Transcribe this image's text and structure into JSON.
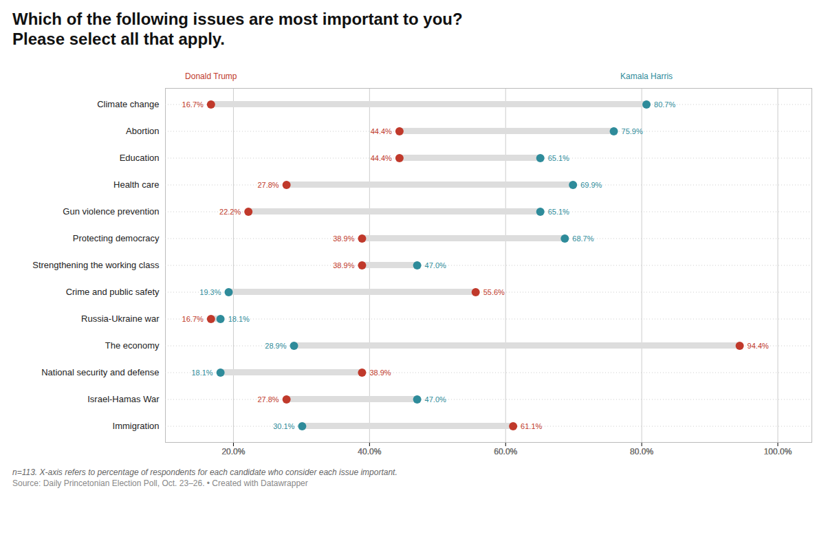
{
  "chart_data": {
    "type": "dumbbell",
    "title": "Which of the following issues are most important to you?",
    "subtitle": "Please select all that apply.",
    "footnotes": [
      "n=113. X-axis refers to percentage of respondents for each candidate who consider each issue important.",
      "Source: Daily Princetonian Election Poll, Oct. 23–26. • Created with Datawrapper"
    ],
    "orientation": "horizontal",
    "categories": [
      "Climate change",
      "Abortion",
      "Education",
      "Health care",
      "Gun violence prevention",
      "Protecting democracy",
      "Strengthening the working class",
      "Crime and public safety",
      "Russia-Ukraine war",
      "The economy",
      "National security and defense",
      "Israel-Hamas War",
      "Immigration"
    ],
    "series": [
      {
        "name": "Donald Trump",
        "color": "#C0392B",
        "values": [
          16.7,
          44.4,
          44.4,
          27.8,
          22.2,
          38.9,
          38.9,
          55.6,
          16.7,
          94.4,
          38.9,
          27.8,
          61.1
        ],
        "value_labels": [
          "16.7%",
          "44.4%",
          "44.4%",
          "27.8%",
          "22.2%",
          "38.9%",
          "38.9%",
          "55.6%",
          "16.7%",
          "94.4%",
          "38.9%",
          "27.8%",
          "61.1%"
        ]
      },
      {
        "name": "Kamala Harris",
        "color": "#2E8B9A",
        "values": [
          80.7,
          75.9,
          65.1,
          69.9,
          65.1,
          68.7,
          47.0,
          19.3,
          18.1,
          28.9,
          18.1,
          47.0,
          30.1
        ],
        "value_labels": [
          "80.7%",
          "75.9%",
          "65.1%",
          "69.9%",
          "65.1%",
          "68.7%",
          "47.0%",
          "19.3%",
          "18.1%",
          "28.9%",
          "18.1%",
          "47.0%",
          "30.1%"
        ]
      }
    ],
    "color": "#DDDDDD",
    "xlim": [
      10,
      105
    ],
    "xticks": [
      {
        "value": 20,
        "label": "20.0%"
      },
      {
        "value": 40,
        "label": "40.0%"
      },
      {
        "value": 60,
        "label": "60.0%"
      },
      {
        "value": 80,
        "label": "80.0%"
      },
      {
        "value": 100,
        "label": "100.0%"
      }
    ],
    "grid": true,
    "data_labels": true
  }
}
